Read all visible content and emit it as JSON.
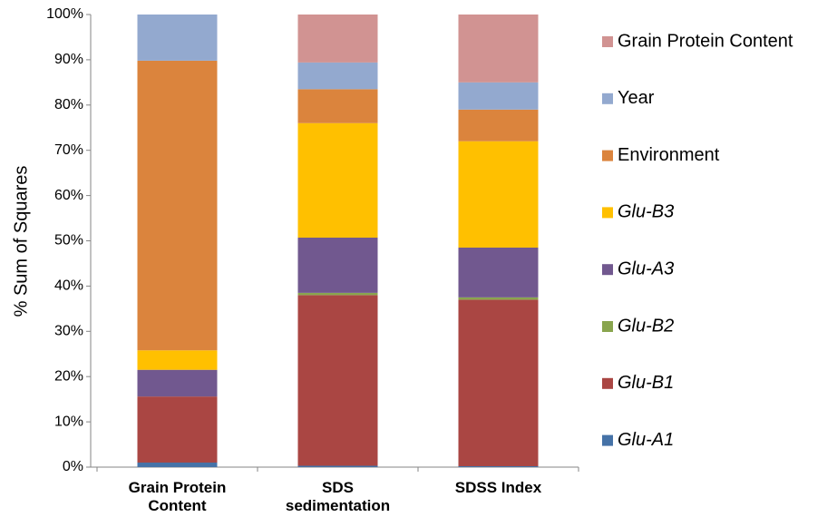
{
  "chart_data": {
    "type": "stacked_bar",
    "y_label": "% Sum of Squares",
    "categories": [
      "Grain Protein Content",
      "SDS sedimentation",
      "SDSS Index"
    ],
    "series": [
      {
        "name": "Glu-A1",
        "color": "#4572a7",
        "italic": true,
        "values": [
          1.0,
          0.3,
          0.2
        ]
      },
      {
        "name": "Glu-B1",
        "color": "#aa4643",
        "italic": true,
        "values": [
          14.6,
          37.7,
          36.8
        ]
      },
      {
        "name": "Glu-B2",
        "color": "#89a54e",
        "italic": true,
        "values": [
          0,
          0.5,
          0.5
        ]
      },
      {
        "name": "Glu-A3",
        "color": "#71588f",
        "italic": true,
        "values": [
          5.9,
          12.2,
          11.0
        ]
      },
      {
        "name": "Glu-B3",
        "color": "#ffc000",
        "italic": true,
        "values": [
          4.3,
          25.3,
          23.5
        ]
      },
      {
        "name": "Environment",
        "color": "#db843d",
        "italic": false,
        "values": [
          64.0,
          7.5,
          7.0
        ]
      },
      {
        "name": "Year",
        "color": "#93a9cf",
        "italic": false,
        "values": [
          10.2,
          5.9,
          6.0
        ]
      },
      {
        "name": "Grain Protein Content",
        "color": "#d19392",
        "italic": false,
        "values": [
          0,
          10.6,
          15.0
        ]
      }
    ],
    "ylim": [
      0,
      100
    ],
    "yticks": [
      {
        "value": 0,
        "label": "0%"
      },
      {
        "value": 10,
        "label": "10%"
      },
      {
        "value": 20,
        "label": "20%"
      },
      {
        "value": 30,
        "label": "30%"
      },
      {
        "value": 40,
        "label": "40%"
      },
      {
        "value": 50,
        "label": "50%"
      },
      {
        "value": 60,
        "label": "60%"
      },
      {
        "value": 70,
        "label": "70%"
      },
      {
        "value": 80,
        "label": "80%"
      },
      {
        "value": 90,
        "label": "90%"
      },
      {
        "value": 100,
        "label": "100%"
      }
    ],
    "legend": "right"
  }
}
